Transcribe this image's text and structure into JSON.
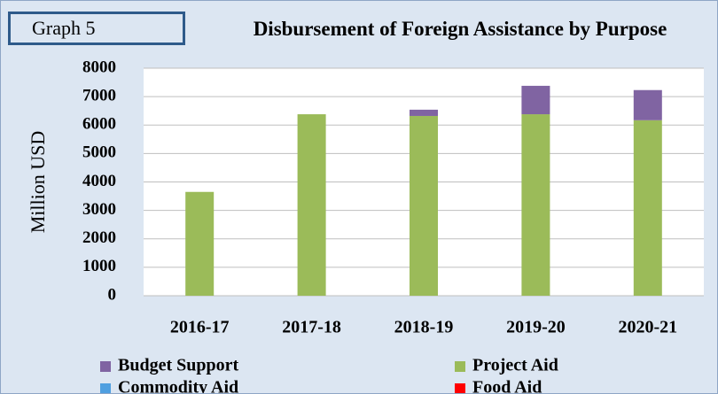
{
  "chart_data": {
    "type": "stacked_bar",
    "label_box": "Graph  5",
    "title": "Disbursement of Foreign Assistance by Purpose",
    "y_label": "Million USD",
    "categories": [
      "2016-17",
      "2017-18",
      "2018-19",
      "2019-20",
      "2020-21"
    ],
    "series": [
      {
        "name": "Budget Support",
        "color": "#8064a2",
        "values": [
          0,
          0,
          220,
          1000,
          1060
        ]
      },
      {
        "name": "Project Aid",
        "color": "#9bbb59",
        "values": [
          3650,
          6380,
          6320,
          6380,
          6170
        ]
      },
      {
        "name": "Commodity Aid",
        "color": "#4f9fe0",
        "values": [
          0,
          0,
          0,
          0,
          0
        ]
      },
      {
        "name": "Food Aid",
        "color": "#ff0000",
        "values": [
          0,
          0,
          0,
          0,
          0
        ]
      }
    ],
    "stack_order": [
      "Project Aid",
      "Commodity Aid",
      "Food Aid",
      "Budget Support"
    ],
    "ylim": [
      0,
      8000
    ],
    "yticks": [
      0,
      1000,
      2000,
      3000,
      4000,
      5000,
      6000,
      7000,
      8000
    ],
    "grid": true
  }
}
